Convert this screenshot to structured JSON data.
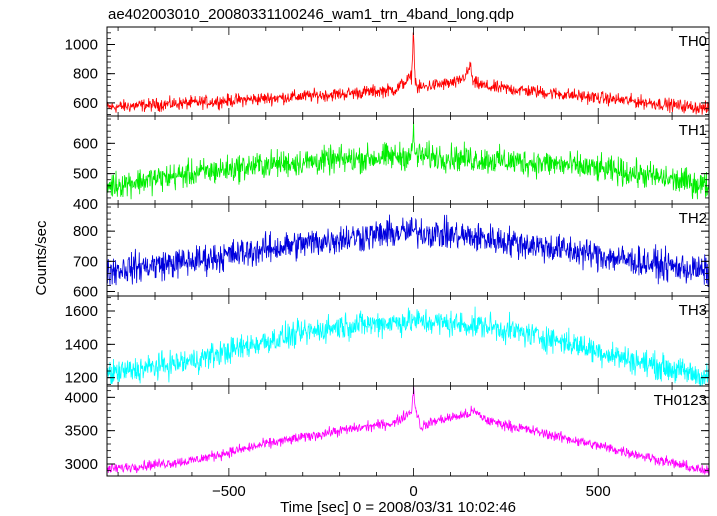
{
  "chart_data": {
    "type": "line",
    "title": "ae402003010_20080331100246_wam1_trn_4band_long.qdp",
    "xlabel": "Time [sec] 0 = 2008/03/31 10:02:46",
    "ylabel": "Counts/sec",
    "xlim": [
      -830,
      800
    ],
    "x_ticks": [
      -500,
      0,
      500
    ],
    "x_tick_labels": [
      "−500",
      "0",
      "500"
    ],
    "grid": false,
    "series": [
      {
        "name": "TH0",
        "color": "#ff0000",
        "ylim": [
          510,
          1120
        ],
        "y_ticks": [
          600,
          800,
          1000
        ],
        "y_tick_labels": [
          "600",
          "800",
          "1000"
        ],
        "noise": 40,
        "x": [
          -830,
          -600,
          -400,
          -200,
          -50,
          -5,
          0,
          3,
          10,
          50,
          120,
          145,
          155,
          160,
          200,
          400,
          600,
          800
        ],
        "y": [
          570,
          600,
          630,
          660,
          690,
          780,
          1120,
          800,
          700,
          720,
          740,
          800,
          860,
          740,
          710,
          660,
          610,
          560
        ]
      },
      {
        "name": "TH1",
        "color": "#00ee00",
        "ylim": [
          400,
          690
        ],
        "y_ticks": [
          400,
          500,
          600
        ],
        "y_tick_labels": [
          "400",
          "500",
          "600"
        ],
        "noise": 40,
        "x": [
          -830,
          -600,
          -400,
          -200,
          -5,
          0,
          5,
          200,
          400,
          600,
          800
        ],
        "y": [
          460,
          500,
          530,
          545,
          560,
          640,
          560,
          545,
          530,
          500,
          460
        ]
      },
      {
        "name": "TH2",
        "color": "#0000dd",
        "ylim": [
          585,
          890
        ],
        "y_ticks": [
          600,
          700,
          800
        ],
        "y_tick_labels": [
          "600",
          "700",
          "800"
        ],
        "noise": 45,
        "x": [
          -830,
          -600,
          -400,
          -200,
          0,
          200,
          400,
          600,
          800
        ],
        "y": [
          670,
          700,
          740,
          775,
          800,
          775,
          740,
          700,
          665
        ]
      },
      {
        "name": "TH3",
        "color": "#00ffff",
        "ylim": [
          1150,
          1690
        ],
        "y_ticks": [
          1200,
          1400,
          1600
        ],
        "y_tick_labels": [
          "1200",
          "1400",
          "1600"
        ],
        "noise": 70,
        "x": [
          -830,
          -600,
          -400,
          -200,
          0,
          200,
          400,
          600,
          800
        ],
        "y": [
          1220,
          1300,
          1420,
          1510,
          1540,
          1510,
          1420,
          1300,
          1200
        ]
      },
      {
        "name": "TH0123",
        "color": "#ff00ff",
        "ylim": [
          2820,
          4170
        ],
        "y_ticks": [
          3000,
          3500,
          4000
        ],
        "y_tick_labels": [
          "3000",
          "3500",
          "4000"
        ],
        "noise": 70,
        "x": [
          -830,
          -600,
          -400,
          -200,
          -50,
          -5,
          0,
          5,
          20,
          60,
          150,
          160,
          200,
          400,
          600,
          800
        ],
        "y": [
          2920,
          3050,
          3300,
          3500,
          3620,
          3800,
          4130,
          3850,
          3550,
          3650,
          3750,
          3800,
          3650,
          3400,
          3150,
          2880
        ]
      }
    ]
  }
}
